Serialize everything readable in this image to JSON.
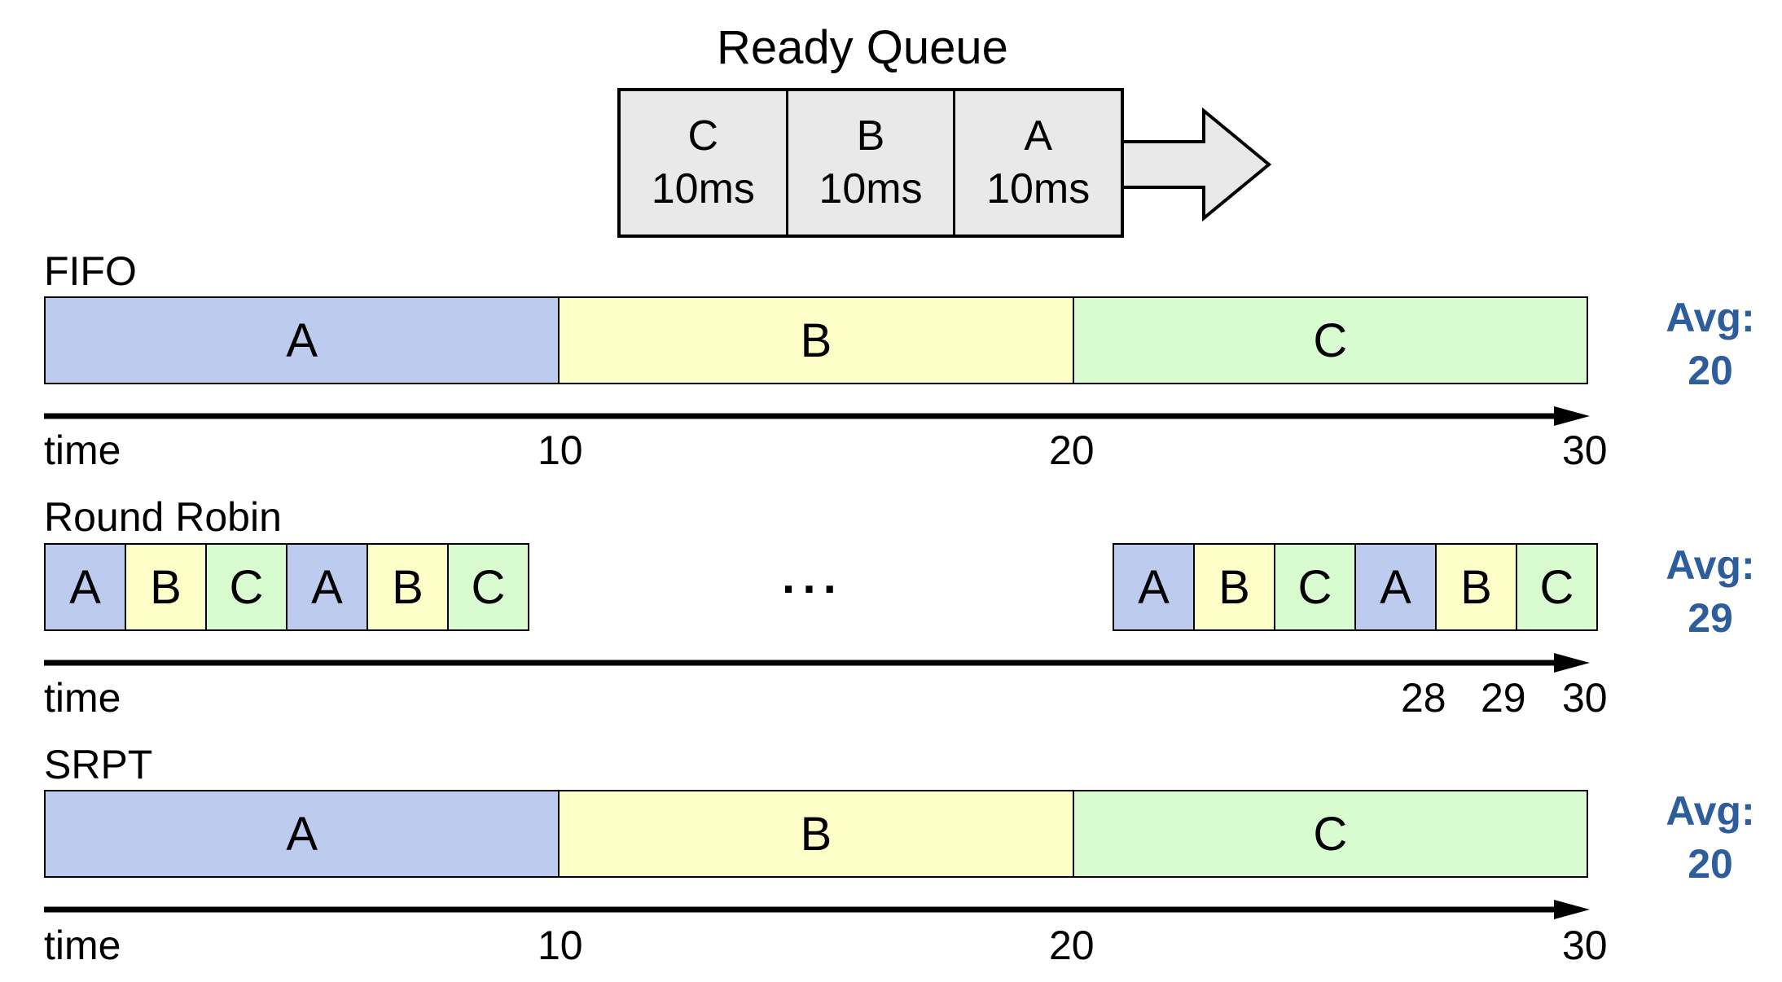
{
  "ready_queue": {
    "title": "Ready Queue",
    "cells": [
      {
        "name": "C",
        "duration": "10ms"
      },
      {
        "name": "B",
        "duration": "10ms"
      },
      {
        "name": "A",
        "duration": "10ms"
      }
    ]
  },
  "colors": {
    "A": "#bccbee",
    "B": "#fefec8",
    "C": "#d8fcd0",
    "queue_fill": "#e9e9e9",
    "avg_text": "#2e5d9c"
  },
  "fifo": {
    "label": "FIFO",
    "segments": [
      "A",
      "B",
      "C"
    ],
    "axis_label": "time",
    "ticks": [
      "10",
      "20",
      "30"
    ],
    "avg_label": "Avg:",
    "avg_value": "20"
  },
  "round_robin": {
    "label": "Round Robin",
    "left_cells": [
      "A",
      "B",
      "C",
      "A",
      "B",
      "C"
    ],
    "ellipsis": "···",
    "right_cells": [
      "A",
      "B",
      "C",
      "A",
      "B",
      "C"
    ],
    "axis_label": "time",
    "ticks": [
      "28",
      "29",
      "30"
    ],
    "avg_label": "Avg:",
    "avg_value": "29"
  },
  "srpt": {
    "label": "SRPT",
    "segments": [
      "A",
      "B",
      "C"
    ],
    "axis_label": "time",
    "ticks": [
      "10",
      "20",
      "30"
    ],
    "avg_label": "Avg:",
    "avg_value": "20"
  }
}
